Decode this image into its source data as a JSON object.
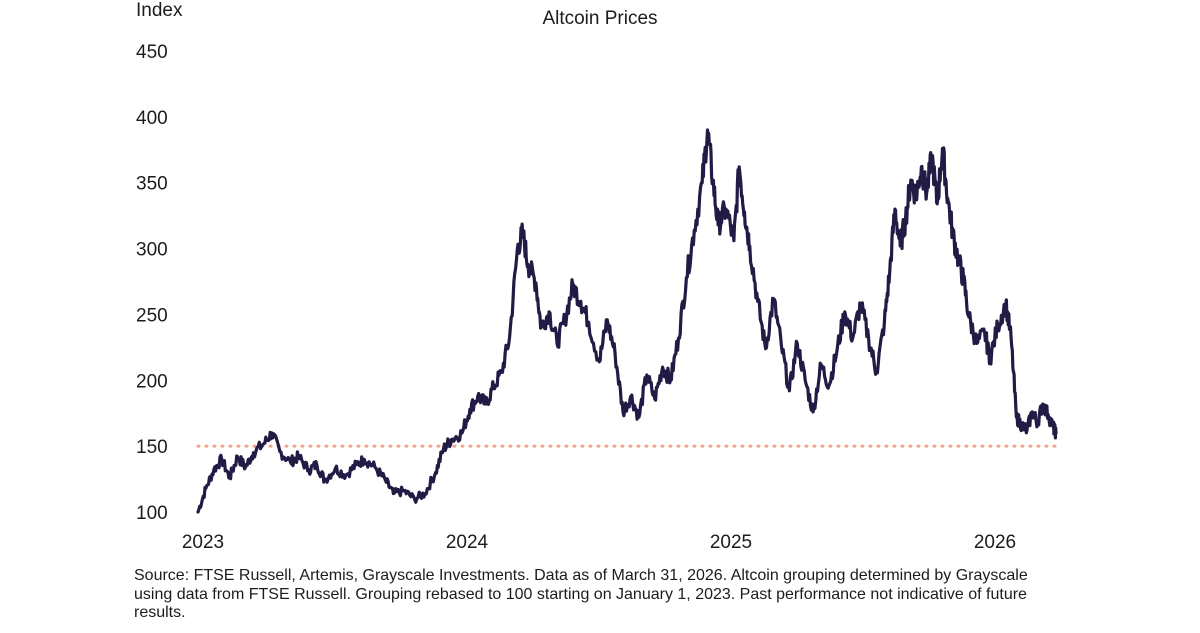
{
  "chart_data": {
    "type": "line",
    "title": "Altcoin Prices",
    "ylabel": "Index",
    "xlabel": "",
    "ylim": [
      100,
      450
    ],
    "yticks": [
      100,
      150,
      200,
      250,
      300,
      350,
      400,
      450
    ],
    "xlim": [
      2023.0,
      2026.25
    ],
    "xticks": [
      2023,
      2024,
      2025,
      2026
    ],
    "reference_line": {
      "value": 150,
      "style": "dotted",
      "color": "#f2a48c"
    },
    "series": [
      {
        "name": "Altcoin Index",
        "color": "#231a45",
        "points": [
          [
            2023.0,
            100
          ],
          [
            2023.03,
            118
          ],
          [
            2023.06,
            132
          ],
          [
            2023.09,
            140
          ],
          [
            2023.12,
            126
          ],
          [
            2023.15,
            142
          ],
          [
            2023.18,
            134
          ],
          [
            2023.21,
            145
          ],
          [
            2023.25,
            152
          ],
          [
            2023.28,
            160
          ],
          [
            2023.31,
            146
          ],
          [
            2023.35,
            138
          ],
          [
            2023.38,
            142
          ],
          [
            2023.42,
            132
          ],
          [
            2023.45,
            136
          ],
          [
            2023.48,
            124
          ],
          [
            2023.52,
            133
          ],
          [
            2023.56,
            128
          ],
          [
            2023.6,
            136
          ],
          [
            2023.63,
            140
          ],
          [
            2023.67,
            134
          ],
          [
            2023.71,
            124
          ],
          [
            2023.74,
            114
          ],
          [
            2023.78,
            116
          ],
          [
            2023.82,
            110
          ],
          [
            2023.86,
            114
          ],
          [
            2023.9,
            130
          ],
          [
            2023.93,
            148
          ],
          [
            2023.96,
            155
          ],
          [
            2024.0,
            160
          ],
          [
            2024.03,
            178
          ],
          [
            2024.06,
            188
          ],
          [
            2024.09,
            182
          ],
          [
            2024.12,
            195
          ],
          [
            2024.15,
            206
          ],
          [
            2024.18,
            232
          ],
          [
            2024.21,
            300
          ],
          [
            2024.23,
            312
          ],
          [
            2024.25,
            288
          ],
          [
            2024.28,
            274
          ],
          [
            2024.3,
            240
          ],
          [
            2024.33,
            252
          ],
          [
            2024.36,
            228
          ],
          [
            2024.39,
            246
          ],
          [
            2024.42,
            272
          ],
          [
            2024.45,
            260
          ],
          [
            2024.48,
            244
          ],
          [
            2024.52,
            214
          ],
          [
            2024.55,
            246
          ],
          [
            2024.58,
            220
          ],
          [
            2024.61,
            176
          ],
          [
            2024.64,
            188
          ],
          [
            2024.67,
            172
          ],
          [
            2024.7,
            204
          ],
          [
            2024.73,
            186
          ],
          [
            2024.76,
            210
          ],
          [
            2024.79,
            200
          ],
          [
            2024.82,
            232
          ],
          [
            2024.85,
            278
          ],
          [
            2024.88,
            314
          ],
          [
            2024.91,
            350
          ],
          [
            2024.93,
            390
          ],
          [
            2024.95,
            352
          ],
          [
            2024.97,
            318
          ],
          [
            2025.0,
            330
          ],
          [
            2025.03,
            306
          ],
          [
            2025.05,
            362
          ],
          [
            2025.07,
            328
          ],
          [
            2025.09,
            302
          ],
          [
            2025.12,
            260
          ],
          [
            2025.15,
            224
          ],
          [
            2025.18,
            262
          ],
          [
            2025.21,
            226
          ],
          [
            2025.24,
            192
          ],
          [
            2025.27,
            228
          ],
          [
            2025.3,
            200
          ],
          [
            2025.33,
            176
          ],
          [
            2025.36,
            212
          ],
          [
            2025.39,
            196
          ],
          [
            2025.42,
            222
          ],
          [
            2025.45,
            252
          ],
          [
            2025.48,
            232
          ],
          [
            2025.51,
            258
          ],
          [
            2025.54,
            232
          ],
          [
            2025.57,
            206
          ],
          [
            2025.6,
            244
          ],
          [
            2025.62,
            282
          ],
          [
            2025.64,
            330
          ],
          [
            2025.66,
            302
          ],
          [
            2025.68,
            322
          ],
          [
            2025.7,
            352
          ],
          [
            2025.72,
            340
          ],
          [
            2025.74,
            362
          ],
          [
            2025.76,
            342
          ],
          [
            2025.78,
            370
          ],
          [
            2025.8,
            334
          ],
          [
            2025.82,
            376
          ],
          [
            2025.84,
            338
          ],
          [
            2025.86,
            310
          ],
          [
            2025.88,
            292
          ],
          [
            2025.9,
            276
          ],
          [
            2025.92,
            248
          ],
          [
            2025.95,
            228
          ],
          [
            2025.98,
            236
          ],
          [
            2026.0,
            216
          ],
          [
            2026.03,
            242
          ],
          [
            2026.06,
            258
          ],
          [
            2026.08,
            232
          ],
          [
            2026.1,
            172
          ],
          [
            2026.12,
            166
          ],
          [
            2026.14,
            162
          ],
          [
            2026.16,
            176
          ],
          [
            2026.18,
            168
          ],
          [
            2026.2,
            182
          ],
          [
            2026.22,
            174
          ],
          [
            2026.24,
            164
          ],
          [
            2026.25,
            160
          ]
        ]
      }
    ]
  },
  "source": "Source: FTSE Russell, Artemis, Grayscale Investments. Data as of March 31, 2026. Altcoin grouping determined by Grayscale using data from FTSE Russell. Grouping rebased to 100 starting on January 1, 2023. Past performance not indicative of future results."
}
